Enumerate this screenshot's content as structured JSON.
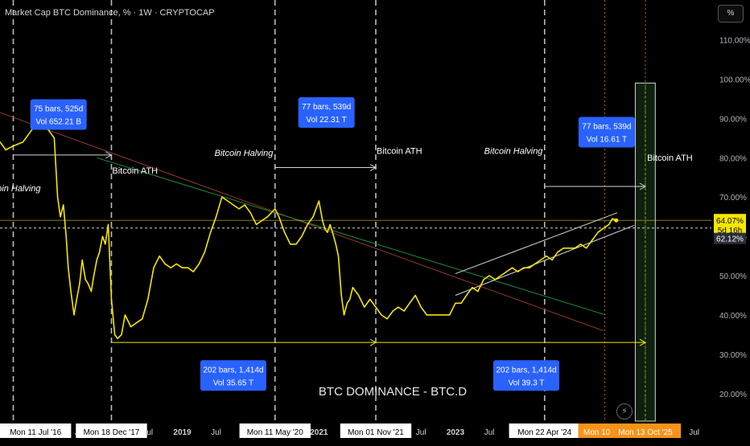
{
  "header": {
    "title": "Market Cap BTC Dominance, % · 1W · CRYPTOCAP",
    "scale_button": "%"
  },
  "watermark": "BTC DOMINANCE - BTC.D",
  "icons": {
    "bolt": "lightning-icon"
  },
  "colors": {
    "price_line": "#f5e600",
    "grid_dash": "#cfcfcf",
    "label_blue": "#2962ff",
    "orange": "#f7931a",
    "green_zone": "#4caf50",
    "green_line": "#1e8c3a",
    "red_line": "#8e3a2a"
  },
  "chart_data": {
    "type": "line",
    "title": "Market Cap BTC Dominance, % · 1W · CRYPTOCAP",
    "y_unit": "%",
    "ylim": [
      13,
      114
    ],
    "y_ticks": [
      {
        "value": 110,
        "label": "110.00%"
      },
      {
        "value": 100,
        "label": "100.00%"
      },
      {
        "value": 90,
        "label": "90.00%"
      },
      {
        "value": 80,
        "label": "80.00%"
      },
      {
        "value": 70,
        "label": "70.00%"
      },
      {
        "value": 60,
        "label": "60.00%"
      },
      {
        "value": 50,
        "label": "50.00%"
      },
      {
        "value": 40,
        "label": "40.00%"
      },
      {
        "value": 30,
        "label": "30.00%"
      },
      {
        "value": 20,
        "label": "20.00%"
      }
    ],
    "x_ticks": [
      {
        "date": "2017-01-01",
        "label": "2017",
        "bold": true
      },
      {
        "date": "2017-07-01",
        "label": "Jul"
      },
      {
        "date": "2018-07-01",
        "label": "Jul"
      },
      {
        "date": "2019-01-01",
        "label": "2019",
        "bold": true
      },
      {
        "date": "2019-07-01",
        "label": "Jul"
      },
      {
        "date": "2021-01-01",
        "label": "2021",
        "bold": true
      },
      {
        "date": "2021-07-01",
        "label": "Jul"
      },
      {
        "date": "2022-07-01",
        "label": "Jul"
      },
      {
        "date": "2023-01-01",
        "label": "2023",
        "bold": true
      },
      {
        "date": "2023-07-01",
        "label": "Jul"
      },
      {
        "date": "2024-01-01",
        "label": "2024",
        "bold": true
      },
      {
        "date": "2026-07-01",
        "label": "Jul"
      }
    ],
    "series": [
      {
        "points": [
          [
            "2016-05-01",
            84
          ],
          [
            "2016-06-01",
            82
          ],
          [
            "2016-07-11",
            83
          ],
          [
            "2016-09-01",
            84
          ],
          [
            "2016-11-01",
            88
          ],
          [
            "2017-01-01",
            88
          ],
          [
            "2017-02-15",
            85
          ],
          [
            "2017-03-05",
            70
          ],
          [
            "2017-03-20",
            65
          ],
          [
            "2017-04-05",
            68
          ],
          [
            "2017-04-20",
            60
          ],
          [
            "2017-05-01",
            52
          ],
          [
            "2017-05-15",
            46
          ],
          [
            "2017-06-01",
            40
          ],
          [
            "2017-06-15",
            44
          ],
          [
            "2017-07-01",
            48
          ],
          [
            "2017-07-15",
            54
          ],
          [
            "2017-08-01",
            49
          ],
          [
            "2017-08-15",
            48
          ],
          [
            "2017-09-01",
            46
          ],
          [
            "2017-09-15",
            50
          ],
          [
            "2017-10-01",
            54
          ],
          [
            "2017-10-15",
            56
          ],
          [
            "2017-11-01",
            60
          ],
          [
            "2017-11-15",
            58
          ],
          [
            "2017-12-01",
            63
          ],
          [
            "2017-12-18",
            44
          ],
          [
            "2018-01-05",
            35
          ],
          [
            "2018-01-20",
            34
          ],
          [
            "2018-02-10",
            35
          ],
          [
            "2018-03-01",
            40
          ],
          [
            "2018-04-01",
            37
          ],
          [
            "2018-05-01",
            38
          ],
          [
            "2018-06-01",
            39
          ],
          [
            "2018-07-01",
            44
          ],
          [
            "2018-08-01",
            52
          ],
          [
            "2018-09-01",
            55
          ],
          [
            "2018-10-01",
            53
          ],
          [
            "2018-11-01",
            52
          ],
          [
            "2018-12-01",
            53
          ],
          [
            "2019-01-01",
            52
          ],
          [
            "2019-02-01",
            52
          ],
          [
            "2019-03-01",
            51
          ],
          [
            "2019-04-01",
            53
          ],
          [
            "2019-05-01",
            56
          ],
          [
            "2019-06-01",
            61
          ],
          [
            "2019-07-01",
            65
          ],
          [
            "2019-08-01",
            70
          ],
          [
            "2019-09-01",
            69
          ],
          [
            "2019-10-01",
            68
          ],
          [
            "2019-11-01",
            67
          ],
          [
            "2019-12-01",
            68
          ],
          [
            "2020-01-01",
            66
          ],
          [
            "2020-02-01",
            63
          ],
          [
            "2020-03-01",
            64
          ],
          [
            "2020-04-01",
            65
          ],
          [
            "2020-05-11",
            67
          ],
          [
            "2020-06-01",
            65
          ],
          [
            "2020-07-01",
            61
          ],
          [
            "2020-08-01",
            58
          ],
          [
            "2020-09-01",
            58
          ],
          [
            "2020-10-01",
            60
          ],
          [
            "2020-11-01",
            63
          ],
          [
            "2020-12-01",
            65
          ],
          [
            "2021-01-01",
            69
          ],
          [
            "2021-01-20",
            64
          ],
          [
            "2021-02-01",
            62
          ],
          [
            "2021-02-15",
            61
          ],
          [
            "2021-03-01",
            63
          ],
          [
            "2021-03-15",
            61
          ],
          [
            "2021-04-01",
            58
          ],
          [
            "2021-04-15",
            55
          ],
          [
            "2021-05-01",
            45
          ],
          [
            "2021-05-15",
            40
          ],
          [
            "2021-06-01",
            43
          ],
          [
            "2021-06-15",
            44
          ],
          [
            "2021-07-01",
            47
          ],
          [
            "2021-08-01",
            45
          ],
          [
            "2021-09-01",
            42
          ],
          [
            "2021-10-01",
            44
          ],
          [
            "2021-11-01",
            42
          ],
          [
            "2021-12-01",
            40
          ],
          [
            "2022-01-01",
            39
          ],
          [
            "2022-02-01",
            41
          ],
          [
            "2022-03-01",
            42
          ],
          [
            "2022-04-01",
            41
          ],
          [
            "2022-05-01",
            43
          ],
          [
            "2022-06-01",
            45
          ],
          [
            "2022-07-01",
            42
          ],
          [
            "2022-08-01",
            40
          ],
          [
            "2022-09-01",
            40
          ],
          [
            "2022-10-01",
            40
          ],
          [
            "2022-11-01",
            40
          ],
          [
            "2022-12-01",
            40
          ],
          [
            "2023-01-01",
            43
          ],
          [
            "2023-02-01",
            43
          ],
          [
            "2023-03-01",
            45
          ],
          [
            "2023-04-01",
            47
          ],
          [
            "2023-05-01",
            46
          ],
          [
            "2023-06-01",
            49
          ],
          [
            "2023-07-01",
            50
          ],
          [
            "2023-08-01",
            49
          ],
          [
            "2023-09-01",
            50
          ],
          [
            "2023-10-01",
            51
          ],
          [
            "2023-11-01",
            52
          ],
          [
            "2023-12-01",
            51
          ],
          [
            "2024-01-01",
            52
          ],
          [
            "2024-02-01",
            52
          ],
          [
            "2024-03-01",
            53
          ],
          [
            "2024-04-01",
            54
          ],
          [
            "2024-05-01",
            55
          ],
          [
            "2024-06-01",
            54
          ],
          [
            "2024-07-01",
            56
          ],
          [
            "2024-08-01",
            57
          ],
          [
            "2024-09-01",
            57
          ],
          [
            "2024-10-01",
            57
          ],
          [
            "2024-11-01",
            58
          ],
          [
            "2024-12-01",
            57
          ],
          [
            "2025-01-01",
            59
          ],
          [
            "2025-02-01",
            61
          ],
          [
            "2025-03-01",
            62
          ],
          [
            "2025-04-01",
            63
          ],
          [
            "2025-04-20",
            64.5
          ],
          [
            "2025-05-10",
            64.07
          ]
        ]
      }
    ],
    "current_price": {
      "value": 64.07,
      "label": "64.07%",
      "countdown": "5d 16h"
    },
    "ref_level": {
      "value": 62.12,
      "label": "62.12%"
    },
    "vlines": [
      {
        "date": "2016-07-11",
        "label": "Mon 11 Jul '16",
        "style": "dash"
      },
      {
        "date": "2017-12-18",
        "label": "Mon 18 Dec '17",
        "style": "dash"
      },
      {
        "date": "2020-05-11",
        "label": "Mon 11 May '20",
        "style": "dash"
      },
      {
        "date": "2021-11-01",
        "label": "Mon 01 Nov '21",
        "style": "dash"
      },
      {
        "date": "2024-04-22",
        "label": "Mon 22 Apr '24",
        "style": "dash"
      },
      {
        "date": "2025-03-10",
        "label": "Mon 10 Mar",
        "style": "orange"
      },
      {
        "date": "2025-10-13",
        "label": "Mon 13 Oct '25",
        "style": "orange"
      }
    ],
    "annotations": [
      {
        "text": "Bitcoin Halving",
        "date": "2016-07-01",
        "value": 71.5,
        "italic": true,
        "anchor": "middle"
      },
      {
        "text": "Bitcoin ATH",
        "date": "2017-12-22",
        "value": 76.0,
        "italic": false,
        "anchor": "start"
      },
      {
        "text": "Bitcoin Halving",
        "date": "2020-05-01",
        "value": 80.5,
        "italic": true,
        "anchor": "end"
      },
      {
        "text": "Bitcoin ATH",
        "date": "2021-11-05",
        "value": 81.0,
        "italic": false,
        "anchor": "start"
      },
      {
        "text": "Bitcoin Halving",
        "date": "2024-04-12",
        "value": 81.0,
        "italic": true,
        "anchor": "end"
      },
      {
        "text": "Bitcoin ATH",
        "date": "2025-10-22",
        "value": 79.2,
        "italic": false,
        "anchor": "start"
      }
    ],
    "measure_labels": [
      {
        "line1": "75 bars, 525d",
        "line2": "Vol 652.21 B",
        "date": "2017-03-10",
        "value": 91.0
      },
      {
        "line1": "77 bars, 539d",
        "line2": "Vol 22.31 T",
        "date": "2021-02-10",
        "value": 91.5
      },
      {
        "line1": "77 bars, 539d",
        "line2": "Vol 16.61 T",
        "date": "2025-03-20",
        "value": 86.5
      },
      {
        "line1": "202 bars, 1,414d",
        "line2": "Vol 35.65 T",
        "date": "2019-10-01",
        "value": 24.6
      },
      {
        "line1": "202 bars, 1,414d",
        "line2": "Vol 39.3 T",
        "date": "2024-01-15",
        "value": 24.6
      }
    ],
    "arrows": [
      {
        "from": "2016-07-11",
        "to": "2017-12-18",
        "value": 80.7,
        "color": "#d1d4dc"
      },
      {
        "from": "2020-05-11",
        "to": "2021-11-01",
        "value": 77.5,
        "color": "#d1d4dc"
      },
      {
        "from": "2024-04-22",
        "to": "2025-10-13",
        "value": 72.7,
        "color": "#d1d4dc"
      },
      {
        "from": "2017-12-18",
        "to": "2021-11-01",
        "value": 33.0,
        "color": "#f5e600"
      },
      {
        "from": "2021-11-01",
        "to": "2025-10-13",
        "value": 33.0,
        "color": "#f5e600"
      }
    ],
    "trendlines": [
      {
        "from": [
          "2016-05-01",
          91.5
        ],
        "to": [
          "2025-03-01",
          36.0
        ],
        "color": "#8e3a2a"
      },
      {
        "from": [
          "2017-10-01",
          80.0
        ],
        "to": [
          "2025-03-15",
          40.0
        ],
        "color": "#1e8c3a"
      }
    ],
    "channel": {
      "upper": {
        "from": [
          "2023-01-01",
          50.5
        ],
        "to": [
          "2025-05-15",
          66.0
        ]
      },
      "lower": {
        "from": [
          "2023-01-01",
          45.0
        ],
        "to": [
          "2025-08-15",
          62.8
        ]
      },
      "color": "#d1d4dc"
    },
    "zone": {
      "from": "2025-08-20",
      "to": "2025-12-05",
      "top": 99.0,
      "color": "#4caf50"
    },
    "grid": false,
    "legend": "none"
  }
}
